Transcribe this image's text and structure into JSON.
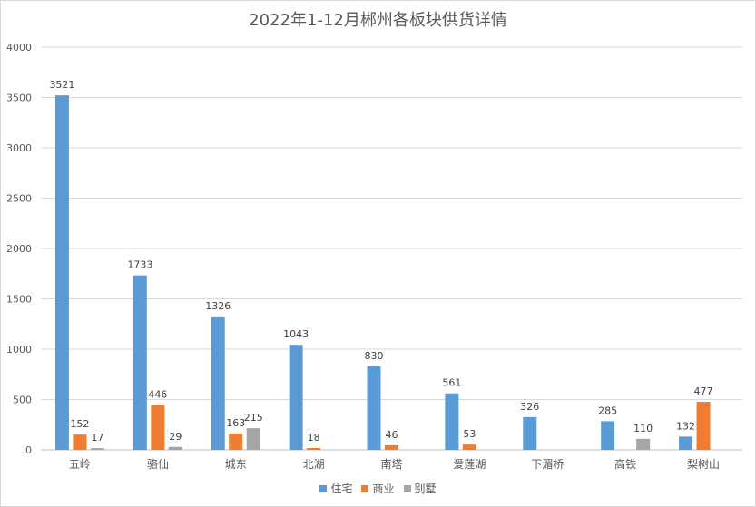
{
  "chart_data": {
    "type": "bar",
    "title": "2022年1-12月郴州各板块供货详情",
    "categories": [
      "五岭",
      "骆仙",
      "城东",
      "北湖",
      "南塔",
      "爱莲湖",
      "下湄桥",
      "高铁",
      "梨树山"
    ],
    "series": [
      {
        "name": "住宅",
        "color": "#5b9bd5",
        "values": [
          3521,
          1733,
          1326,
          1043,
          830,
          561,
          326,
          285,
          132
        ]
      },
      {
        "name": "商业",
        "color": "#ed7d31",
        "values": [
          152,
          446,
          163,
          18,
          46,
          53,
          null,
          null,
          477
        ]
      },
      {
        "name": "别墅",
        "color": "#a5a5a5",
        "values": [
          17,
          29,
          215,
          null,
          null,
          null,
          null,
          110,
          null
        ]
      }
    ],
    "yticks": [
      "0",
      "500",
      "1000",
      "1500",
      "2000",
      "2500",
      "3000",
      "3500",
      "4000"
    ],
    "ylim": [
      0,
      4000
    ],
    "grid": true,
    "legend_position": "bottom"
  }
}
